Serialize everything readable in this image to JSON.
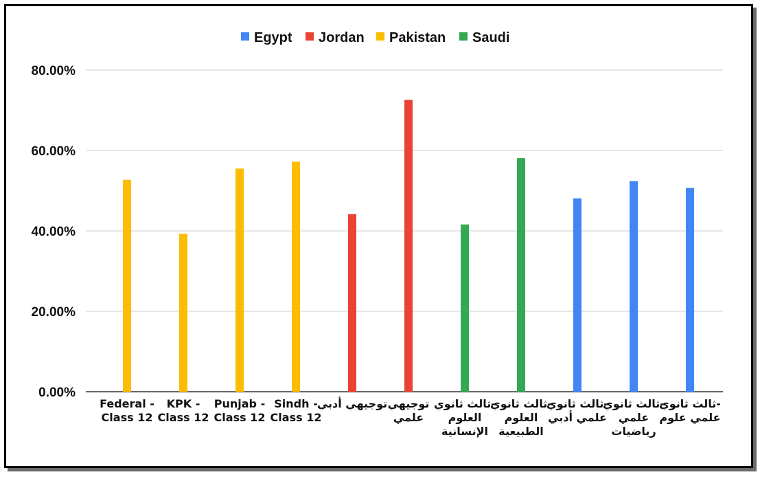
{
  "chart_data": {
    "type": "bar",
    "title": "",
    "xlabel": "",
    "ylabel": "",
    "ylim": [
      0,
      0.8
    ],
    "y_ticks": [
      "0.00%",
      "20.00%",
      "40.00%",
      "60.00%",
      "80.00%"
    ],
    "grid": true,
    "legend_position": "top-center",
    "series": [
      {
        "name": "Egypt",
        "color": "#4285F4"
      },
      {
        "name": "Jordan",
        "color": "#EA4335"
      },
      {
        "name": "Pakistan",
        "color": "#FBBC04"
      },
      {
        "name": "Saudi",
        "color": "#34A853"
      }
    ],
    "categories": [
      {
        "label_lines": [
          "Federal -",
          "Class 12"
        ],
        "series": "Pakistan",
        "value": 0.527
      },
      {
        "label_lines": [
          "KPK -",
          "Class 12"
        ],
        "series": "Pakistan",
        "value": 0.393
      },
      {
        "label_lines": [
          "Punjab -",
          "Class 12"
        ],
        "series": "Pakistan",
        "value": 0.555
      },
      {
        "label_lines": [
          "Sindh -",
          "Class 12"
        ],
        "series": "Pakistan",
        "value": 0.572
      },
      {
        "label_lines": [
          "توجيهي أدبي"
        ],
        "series": "Jordan",
        "value": 0.442
      },
      {
        "label_lines": [
          "توجيهي",
          "علمي"
        ],
        "series": "Jordan",
        "value": 0.726
      },
      {
        "label_lines": [
          "ثالث ثانوي-",
          "العلوم",
          "الإنسانية"
        ],
        "series": "Saudi",
        "value": 0.416
      },
      {
        "label_lines": [
          "ثالث ثانوي-",
          "العلوم",
          "الطبيعية"
        ],
        "series": "Saudi",
        "value": 0.581
      },
      {
        "label_lines": [
          "ثالث ثانوي-",
          "علمي أدبي"
        ],
        "series": "Egypt",
        "value": 0.481
      },
      {
        "label_lines": [
          "ثالث ثانوي-",
          "علمي",
          "رياضيات"
        ],
        "series": "Egypt",
        "value": 0.524
      },
      {
        "label_lines": [
          "ثالث ثانوي-",
          "علمي علوم"
        ],
        "series": "Egypt",
        "value": 0.507
      }
    ]
  }
}
